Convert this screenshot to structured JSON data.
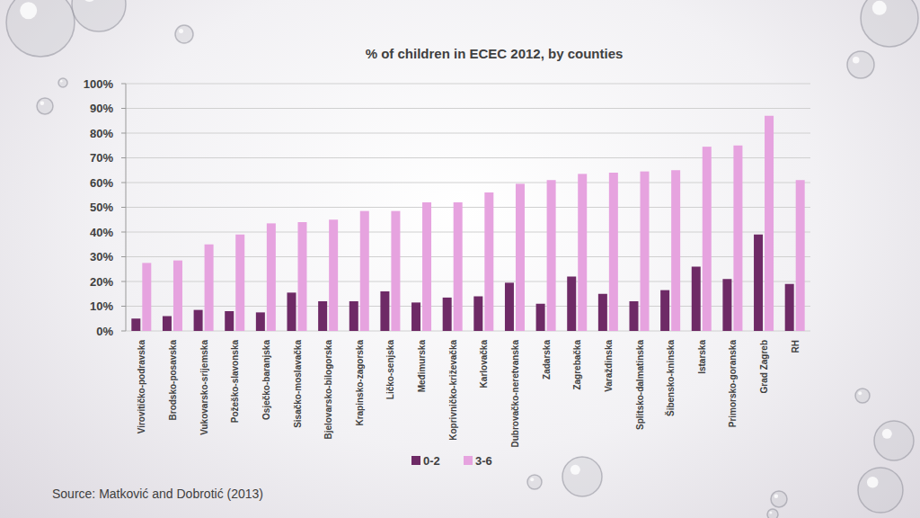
{
  "chart_data": {
    "type": "bar",
    "title": "% of children in ECEC 2012, by counties",
    "annotations": [
      "Source: Matković and Dobrotić (2013)"
    ],
    "categories": [
      "Virovitičko-podravska",
      "Brodsko-posavska",
      "Vukovarsko-srijemska",
      "Požeško-slavonska",
      "Osječko-baranjska",
      "Sisačko-moslavačka",
      "Bjelovarsko-bilogorska",
      "Krapinsko-zagorska",
      "Ličko-senjska",
      "Međimurska",
      "Koprivničko-križevačka",
      "Karlovačka",
      "Dubrovačko-neretvanska",
      "Zadarska",
      "Zagrebačka",
      "Varaždinska",
      "Splitsko-dalmatinska",
      "Šibensko-kninska",
      "Istarska",
      "Primorsko-goranska",
      "Grad Zagreb",
      "RH"
    ],
    "series": [
      {
        "name": "0-2",
        "color": "#6e2a66",
        "values": [
          5,
          6,
          8.5,
          8,
          7.5,
          15.5,
          12,
          12,
          16,
          11.5,
          13.5,
          14,
          19.5,
          11,
          22,
          15,
          12,
          16.5,
          26,
          21,
          39,
          19
        ]
      },
      {
        "name": "3-6",
        "color": "#e6a3df",
        "values": [
          27.5,
          28.5,
          35,
          39,
          43.5,
          44,
          45,
          48.5,
          48.5,
          52,
          52,
          56,
          59.5,
          61,
          63.5,
          64,
          64.5,
          65,
          74.5,
          75,
          87,
          61
        ]
      }
    ],
    "ylim": [
      0,
      100
    ],
    "yticks": [
      {
        "value": 0,
        "label": "0%"
      },
      {
        "value": 10,
        "label": "10%"
      },
      {
        "value": 20,
        "label": "20%"
      },
      {
        "value": 30,
        "label": "30%"
      },
      {
        "value": 40,
        "label": "40%"
      },
      {
        "value": 50,
        "label": "50%"
      },
      {
        "value": 60,
        "label": "60%"
      },
      {
        "value": 70,
        "label": "70%"
      },
      {
        "value": 80,
        "label": "80%"
      },
      {
        "value": 90,
        "label": "90%"
      },
      {
        "value": 100,
        "label": "100%"
      }
    ],
    "grid": true,
    "legend": "bottom"
  }
}
